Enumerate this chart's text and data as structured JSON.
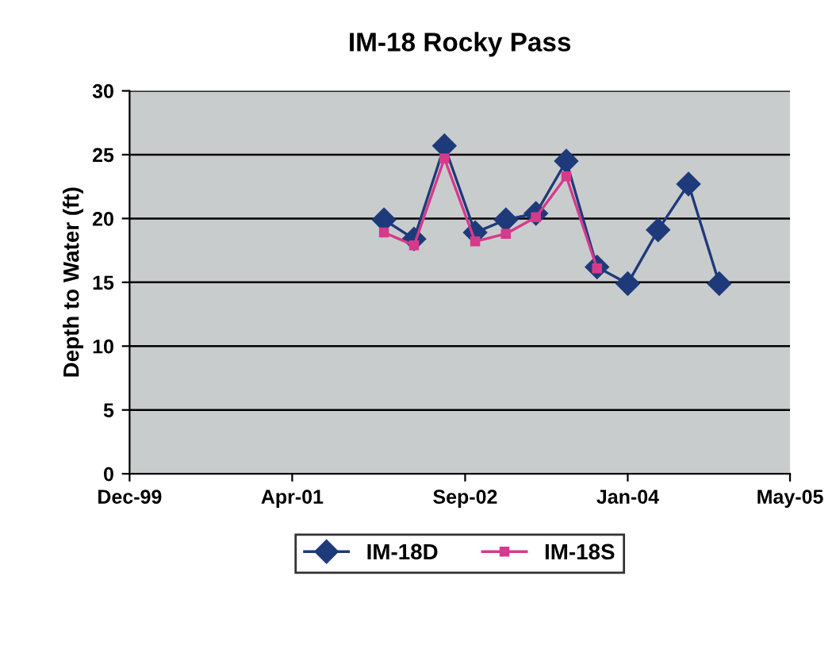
{
  "chart_data": {
    "type": "line",
    "title": "IM-18 Rocky Pass",
    "ylabel": "Depth to Water (ft)",
    "x": [
      "2002-01",
      "2002-04",
      "2002-07",
      "2002-10",
      "2003-01",
      "2003-04",
      "2003-07",
      "2003-10",
      "2004-01",
      "2004-04",
      "2004-07",
      "2004-10"
    ],
    "series": [
      {
        "name": "IM-18D",
        "color": "#1f3a7a",
        "marker": "diamond",
        "values": [
          19.9,
          18.4,
          25.7,
          18.9,
          19.9,
          20.4,
          24.5,
          16.2,
          14.9,
          19.1,
          22.7,
          14.9
        ]
      },
      {
        "name": "IM-18S",
        "color": "#d63a8c",
        "marker": "square",
        "values": [
          18.9,
          17.9,
          24.7,
          18.2,
          18.8,
          20.1,
          23.3,
          16.1,
          null,
          null,
          null,
          null
        ]
      }
    ],
    "xlim": [
      "1999-12",
      "2005-05"
    ],
    "xticks": [
      {
        "value": "1999-12",
        "label": "Dec-99"
      },
      {
        "value": "2001-04",
        "label": "Apr-01"
      },
      {
        "value": "2002-09",
        "label": "Sep-02"
      },
      {
        "value": "2004-01",
        "label": "Jan-04"
      },
      {
        "value": "2005-05",
        "label": "May-05"
      }
    ],
    "ylim": [
      0,
      30
    ],
    "yticks": [
      0,
      5,
      10,
      15,
      20,
      25,
      30
    ],
    "grid": "y",
    "legend": "bottom",
    "line_style": "solid"
  }
}
